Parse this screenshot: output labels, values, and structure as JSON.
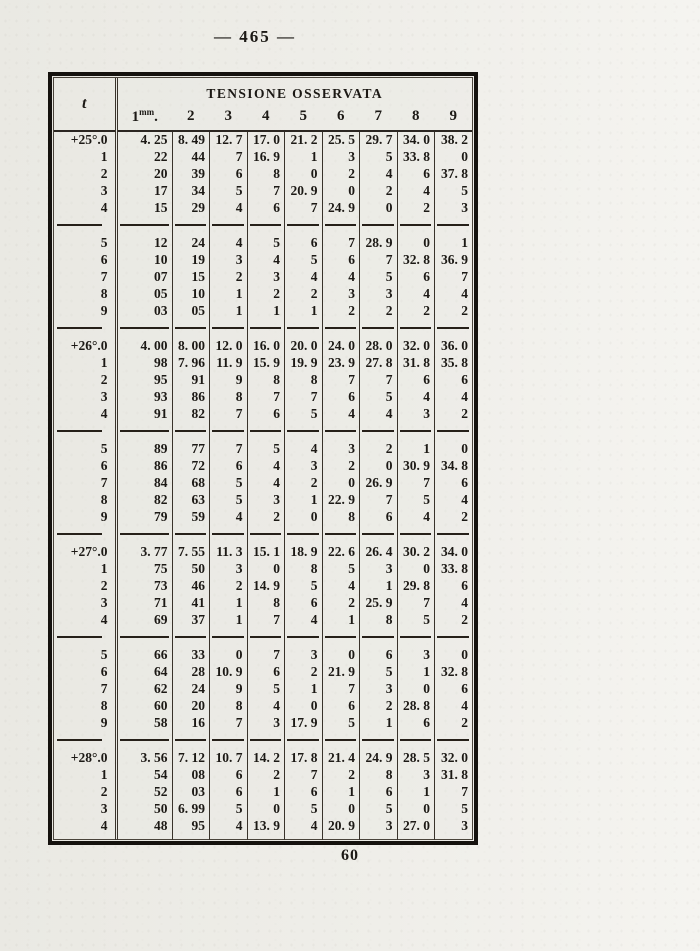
{
  "page": {
    "number_display": "— 465 —",
    "footer_number": "60"
  },
  "table": {
    "corner_header": "t",
    "span_header": "TENSIONE OSSERVATA",
    "col_headers": [
      "1mm.",
      "2",
      "3",
      "4",
      "5",
      "6",
      "7",
      "8",
      "9"
    ],
    "blocks": [
      {
        "rows": [
          {
            "t": "+25°.0",
            "v": [
              "4. 25",
              "8. 49",
              "12. 7",
              "17. 0",
              "21. 2",
              "25. 5",
              "29. 7",
              "34. 0",
              "38. 2"
            ]
          },
          {
            "t": "1",
            "v": [
              "22",
              "44",
              "7",
              "16. 9",
              "1",
              "3",
              "5",
              "33. 8",
              "0"
            ]
          },
          {
            "t": "2",
            "v": [
              "20",
              "39",
              "6",
              "8",
              "0",
              "2",
              "4",
              "6",
              "37. 8"
            ]
          },
          {
            "t": "3",
            "v": [
              "17",
              "34",
              "5",
              "7",
              "20. 9",
              "0",
              "2",
              "4",
              "5"
            ]
          },
          {
            "t": "4",
            "v": [
              "15",
              "29",
              "4",
              "6",
              "7",
              "24. 9",
              "0",
              "2",
              "3"
            ]
          }
        ]
      },
      {
        "rows": [
          {
            "t": "5",
            "v": [
              "12",
              "24",
              "4",
              "5",
              "6",
              "7",
              "28. 9",
              "0",
              "1"
            ]
          },
          {
            "t": "6",
            "v": [
              "10",
              "19",
              "3",
              "4",
              "5",
              "6",
              "7",
              "32. 8",
              "36. 9"
            ]
          },
          {
            "t": "7",
            "v": [
              "07",
              "15",
              "2",
              "3",
              "4",
              "4",
              "5",
              "6",
              "7"
            ]
          },
          {
            "t": "8",
            "v": [
              "05",
              "10",
              "1",
              "2",
              "2",
              "3",
              "3",
              "4",
              "4"
            ]
          },
          {
            "t": "9",
            "v": [
              "03",
              "05",
              "1",
              "1",
              "1",
              "2",
              "2",
              "2",
              "2"
            ]
          }
        ]
      },
      {
        "rows": [
          {
            "t": "+26°.0",
            "v": [
              "4. 00",
              "8. 00",
              "12. 0",
              "16. 0",
              "20. 0",
              "24. 0",
              "28. 0",
              "32. 0",
              "36. 0"
            ]
          },
          {
            "t": "1",
            "v": [
              "98",
              "7. 96",
              "11. 9",
              "15. 9",
              "19. 9",
              "23. 9",
              "27. 8",
              "31. 8",
              "35. 8"
            ]
          },
          {
            "t": "2",
            "v": [
              "95",
              "91",
              "9",
              "8",
              "8",
              "7",
              "7",
              "6",
              "6"
            ]
          },
          {
            "t": "3",
            "v": [
              "93",
              "86",
              "8",
              "7",
              "7",
              "6",
              "5",
              "4",
              "4"
            ]
          },
          {
            "t": "4",
            "v": [
              "91",
              "82",
              "7",
              "6",
              "5",
              "4",
              "4",
              "3",
              "2"
            ]
          }
        ]
      },
      {
        "rows": [
          {
            "t": "5",
            "v": [
              "89",
              "77",
              "7",
              "5",
              "4",
              "3",
              "2",
              "1",
              "0"
            ]
          },
          {
            "t": "6",
            "v": [
              "86",
              "72",
              "6",
              "4",
              "3",
              "2",
              "0",
              "30. 9",
              "34. 8"
            ]
          },
          {
            "t": "7",
            "v": [
              "84",
              "68",
              "5",
              "4",
              "2",
              "0",
              "26. 9",
              "7",
              "6"
            ]
          },
          {
            "t": "8",
            "v": [
              "82",
              "63",
              "5",
              "3",
              "1",
              "22. 9",
              "7",
              "5",
              "4"
            ]
          },
          {
            "t": "9",
            "v": [
              "79",
              "59",
              "4",
              "2",
              "0",
              "8",
              "6",
              "4",
              "2"
            ]
          }
        ]
      },
      {
        "rows": [
          {
            "t": "+27°.0",
            "v": [
              "3. 77",
              "7. 55",
              "11. 3",
              "15. 1",
              "18. 9",
              "22. 6",
              "26. 4",
              "30. 2",
              "34. 0"
            ]
          },
          {
            "t": "1",
            "v": [
              "75",
              "50",
              "3",
              "0",
              "8",
              "5",
              "3",
              "0",
              "33. 8"
            ]
          },
          {
            "t": "2",
            "v": [
              "73",
              "46",
              "2",
              "14. 9",
              "5",
              "4",
              "1",
              "29. 8",
              "6"
            ]
          },
          {
            "t": "3",
            "v": [
              "71",
              "41",
              "1",
              "8",
              "6",
              "2",
              "25. 9",
              "7",
              "4"
            ]
          },
          {
            "t": "4",
            "v": [
              "69",
              "37",
              "1",
              "7",
              "4",
              "1",
              "8",
              "5",
              "2"
            ]
          }
        ]
      },
      {
        "rows": [
          {
            "t": "5",
            "v": [
              "66",
              "33",
              "0",
              "7",
              "3",
              "0",
              "6",
              "3",
              "0"
            ]
          },
          {
            "t": "6",
            "v": [
              "64",
              "28",
              "10. 9",
              "6",
              "2",
              "21. 9",
              "5",
              "1",
              "32. 8"
            ]
          },
          {
            "t": "7",
            "v": [
              "62",
              "24",
              "9",
              "5",
              "1",
              "7",
              "3",
              "0",
              "6"
            ]
          },
          {
            "t": "8",
            "v": [
              "60",
              "20",
              "8",
              "4",
              "0",
              "6",
              "2",
              "28. 8",
              "4"
            ]
          },
          {
            "t": "9",
            "v": [
              "58",
              "16",
              "7",
              "3",
              "17. 9",
              "5",
              "1",
              "6",
              "2"
            ]
          }
        ]
      },
      {
        "rows": [
          {
            "t": "+28°.0",
            "v": [
              "3. 56",
              "7. 12",
              "10. 7",
              "14. 2",
              "17. 8",
              "21. 4",
              "24. 9",
              "28. 5",
              "32. 0"
            ]
          },
          {
            "t": "1",
            "v": [
              "54",
              "08",
              "6",
              "2",
              "7",
              "2",
              "8",
              "3",
              "31. 8"
            ]
          },
          {
            "t": "2",
            "v": [
              "52",
              "03",
              "6",
              "1",
              "6",
              "1",
              "6",
              "1",
              "7"
            ]
          },
          {
            "t": "3",
            "v": [
              "50",
              "6. 99",
              "5",
              "0",
              "5",
              "0",
              "5",
              "0",
              "5"
            ]
          },
          {
            "t": "4",
            "v": [
              "48",
              "95",
              "4",
              "13. 9",
              "4",
              "20. 9",
              "3",
              "27. 0",
              "3"
            ]
          }
        ]
      }
    ]
  }
}
